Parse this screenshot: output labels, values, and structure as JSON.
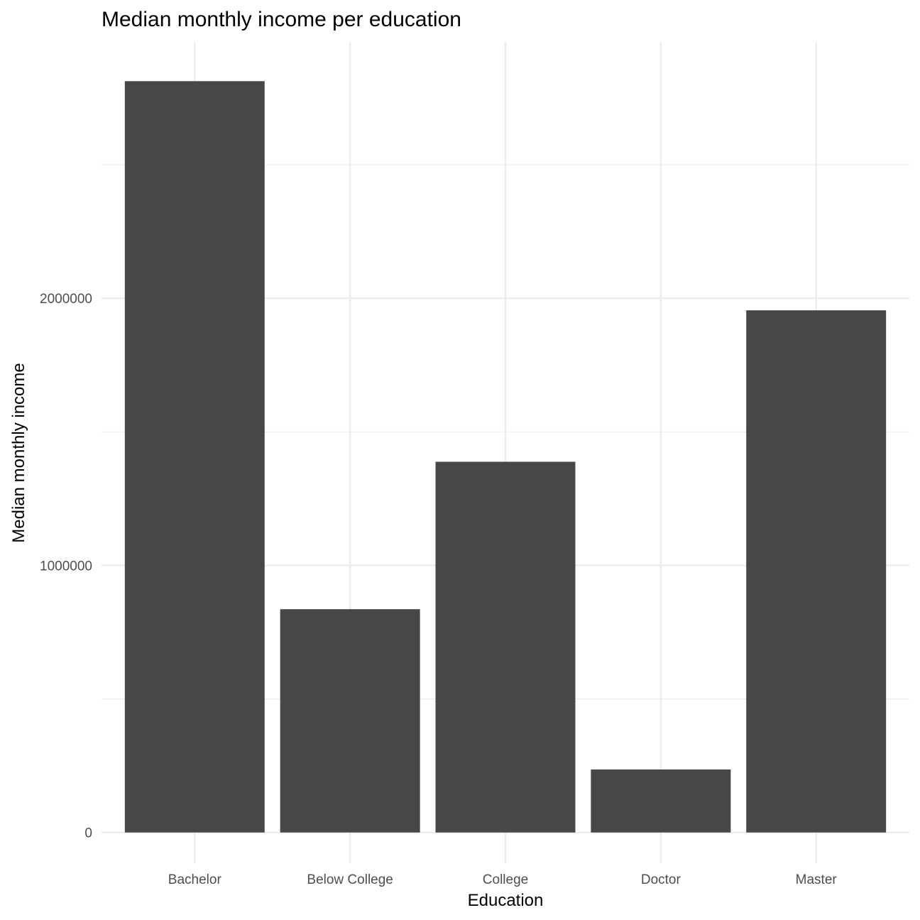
{
  "chart_data": {
    "type": "bar",
    "title": "Median monthly income per education",
    "xlabel": "Education",
    "ylabel": "Median monthly income",
    "categories": [
      "Bachelor",
      "Below College",
      "College",
      "Doctor",
      "Master"
    ],
    "values": [
      2813000,
      836000,
      1388000,
      236000,
      1955000
    ],
    "ylim": [
      -115000,
      2960000
    ],
    "yticks": [
      0,
      1000000,
      2000000
    ],
    "ytick_labels": [
      "0",
      "1000000",
      "2000000"
    ],
    "yminor": [
      500000,
      1500000,
      2500000
    ],
    "grid": true,
    "bar_color": "#474747",
    "grid_color": "#ebebeb",
    "background": "#ffffff"
  }
}
